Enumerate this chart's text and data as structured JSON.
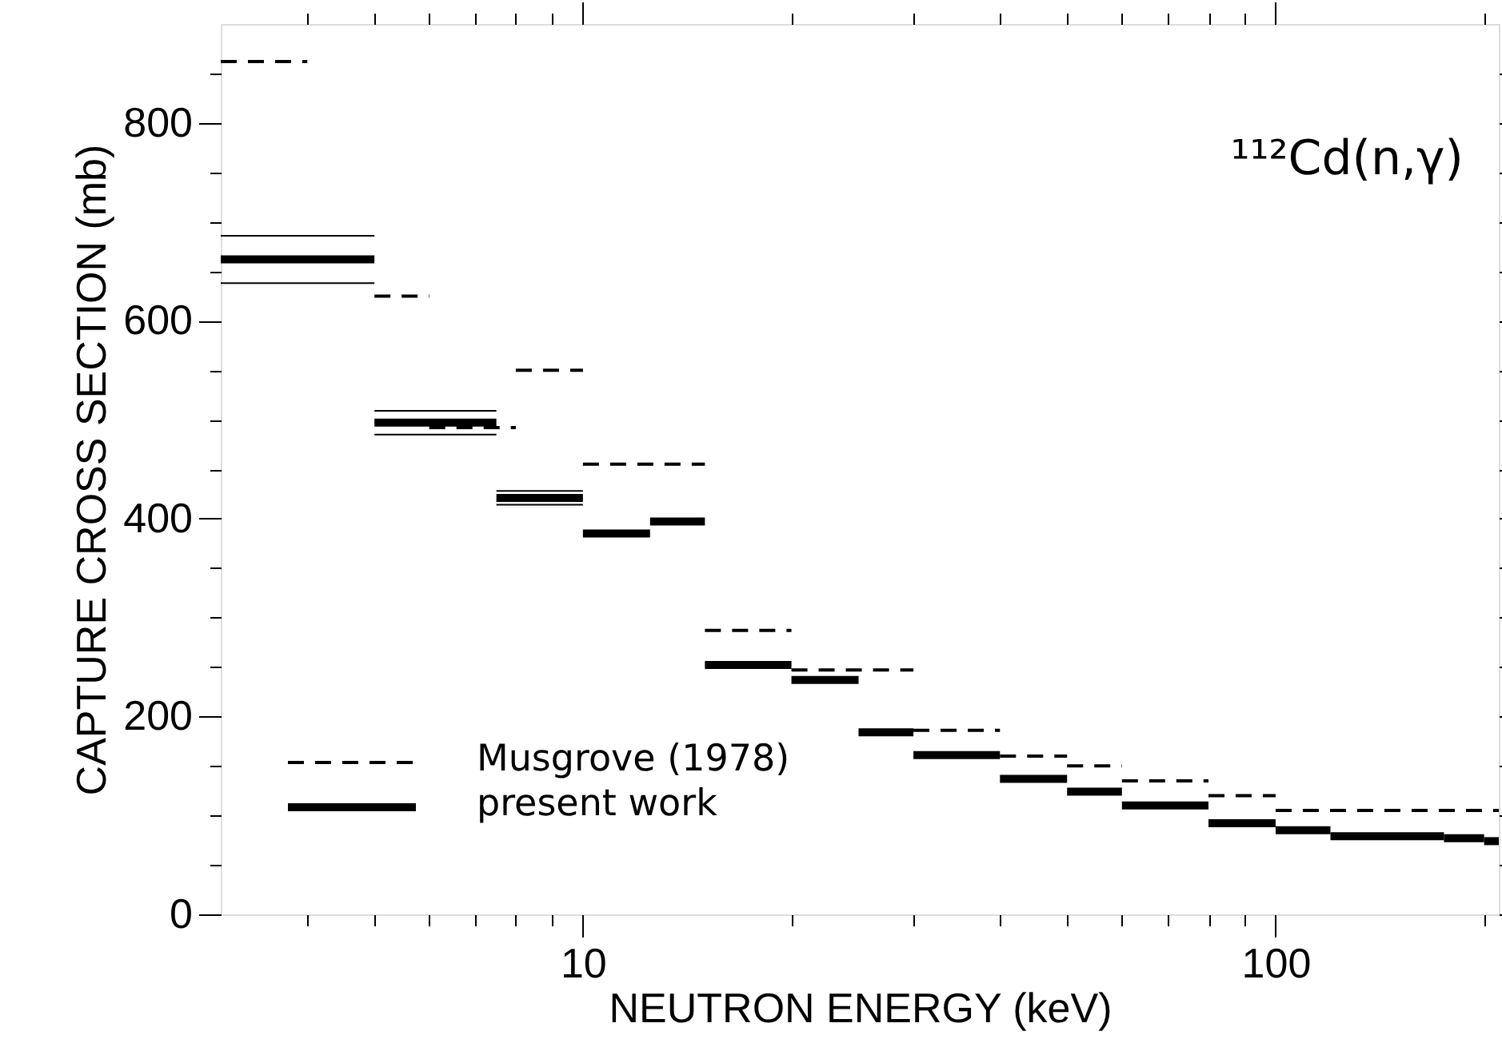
{
  "chart_data": {
    "type": "step",
    "xlabel": "NEUTRON ENERGY (keV)",
    "ylabel": "CAPTURE CROSS SECTION (mb)",
    "annotations": [
      "¹¹²Cd(n,γ)"
    ],
    "log": "x",
    "grid": false,
    "legend": "bottom left",
    "xlim": [
      3,
      210
    ],
    "xticks": [
      {
        "value": 4,
        "label": null
      },
      {
        "value": 5,
        "label": null
      },
      {
        "value": 6,
        "label": null
      },
      {
        "value": 7,
        "label": null
      },
      {
        "value": 8,
        "label": null
      },
      {
        "value": 9,
        "label": null
      },
      10,
      {
        "value": 20,
        "label": null
      },
      {
        "value": 30,
        "label": null
      },
      {
        "value": 40,
        "label": null
      },
      {
        "value": 50,
        "label": null
      },
      {
        "value": 60,
        "label": null
      },
      {
        "value": 70,
        "label": null
      },
      {
        "value": 80,
        "label": null
      },
      {
        "value": 90,
        "label": null
      },
      100,
      {
        "value": 200,
        "label": null
      }
    ],
    "ylim": [
      0,
      900
    ],
    "yticks": [
      0,
      {
        "value": 50,
        "label": null
      },
      {
        "value": 100,
        "label": null
      },
      {
        "value": 150,
        "label": null
      },
      200,
      {
        "value": 250,
        "label": null
      },
      {
        "value": 300,
        "label": null
      },
      {
        "value": 350,
        "label": null
      },
      400,
      {
        "value": 450,
        "label": null
      },
      {
        "value": 500,
        "label": null
      },
      {
        "value": 550,
        "label": null
      },
      600,
      {
        "value": 650,
        "label": null
      },
      {
        "value": 700,
        "label": null
      },
      {
        "value": 750,
        "label": null
      },
      800,
      {
        "value": 850,
        "label": null
      }
    ],
    "series": [
      {
        "name": "Musgrove (1978)",
        "color": "#000000",
        "line_style": "dashed",
        "x": [
          3,
          4,
          5,
          6,
          8,
          10,
          15,
          20,
          30,
          40,
          50,
          60,
          80,
          100,
          210
        ],
        "values": [
          862,
          null,
          625,
          492,
          550,
          455,
          287,
          247,
          186,
          160,
          150,
          135,
          120,
          105,
          105
        ]
      },
      {
        "name": "present work",
        "color": "#000000",
        "line_style": "solid",
        "x": [
          3,
          5,
          7.5,
          10,
          12.5,
          15,
          20,
          25,
          30,
          40,
          50,
          60,
          80,
          100,
          120,
          175,
          200,
          210
        ],
        "values": [
          662,
          497,
          421,
          385,
          397,
          252,
          237,
          184,
          161,
          137,
          124,
          110,
          92,
          85,
          79,
          77,
          74,
          74
        ]
      },
      {
        "type": "step",
        "color": "#000000",
        "line_style": "solid",
        "x": [
          3,
          5,
          7.5,
          10
        ],
        "values": [
          686,
          509,
          428,
          428
        ]
      },
      {
        "type": "step",
        "color": "#000000",
        "line_style": "solid",
        "x": [
          3,
          5,
          7.5,
          10
        ],
        "values": [
          638,
          485,
          414,
          414
        ]
      }
    ]
  }
}
